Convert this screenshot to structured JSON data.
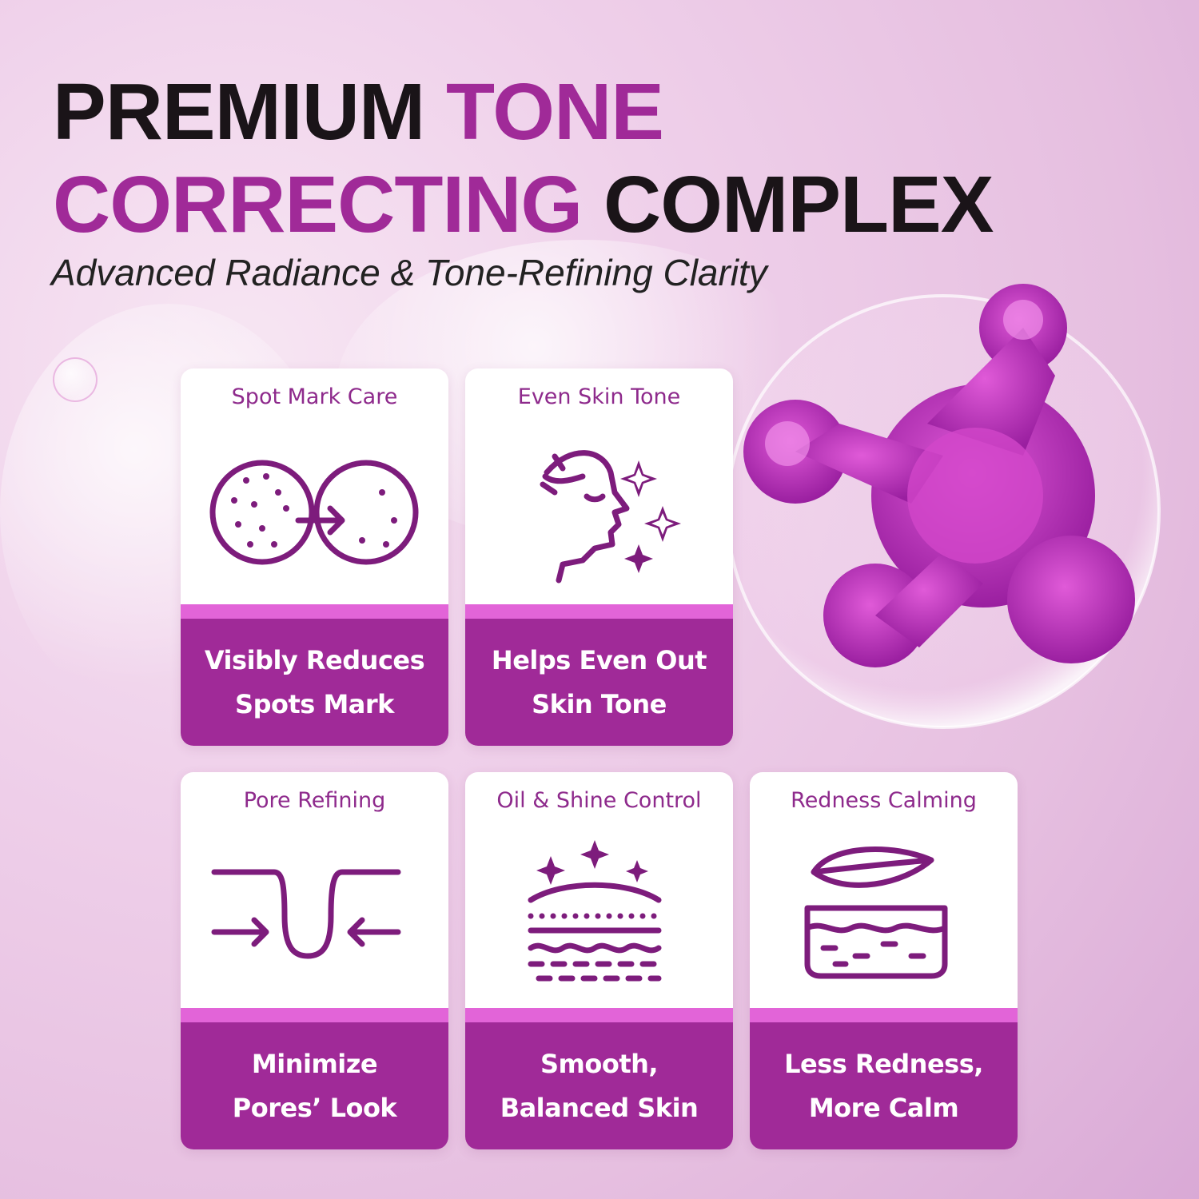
{
  "headline": {
    "line1_dark": "PREMIUM",
    "line1_accent": "TONE",
    "line2_accent": "CORRECTING",
    "line2_dark": "COMPLEX"
  },
  "subtitle": "Advanced Radiance & Tone-Refining Clarity",
  "colors": {
    "accent": "#a02a98",
    "band": "#e264d8",
    "icon": "#7d1c7c"
  },
  "cards": [
    {
      "title": "Spot Mark Care",
      "icon": "spot-to-clear-icon",
      "benefit": "Visibly Reduces\nSpots Mark"
    },
    {
      "title": "Even Skin Tone",
      "icon": "face-sparkle-icon",
      "benefit": "Helps Even Out\nSkin Tone"
    },
    {
      "title": "Pore Refining",
      "icon": "pore-shrink-icon",
      "benefit": "Minimize\nPores’ Look"
    },
    {
      "title": "Oil & Shine Control",
      "icon": "skin-layers-sparkle-icon",
      "benefit": "Smooth,\nBalanced Skin"
    },
    {
      "title": "Redness Calming",
      "icon": "leaf-skin-icon",
      "benefit": "Less Redness,\nMore Calm"
    }
  ]
}
